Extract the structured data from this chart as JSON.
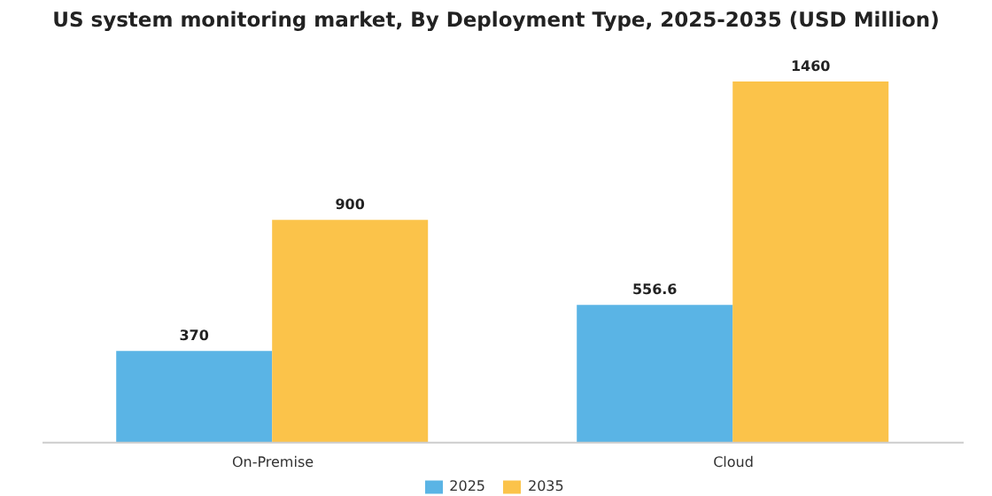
{
  "chart_data": {
    "type": "bar",
    "title": "US system monitoring market, By Deployment Type, 2025-2035 (USD Million)",
    "categories": [
      "On-Premise",
      "Cloud"
    ],
    "series": [
      {
        "name": "2025",
        "color": "#5ab4e5",
        "values": [
          370,
          556.6
        ]
      },
      {
        "name": "2035",
        "color": "#fbc34a",
        "values": [
          900,
          1460
        ]
      }
    ],
    "data_labels": true,
    "legend": "bottom",
    "grid": false
  }
}
